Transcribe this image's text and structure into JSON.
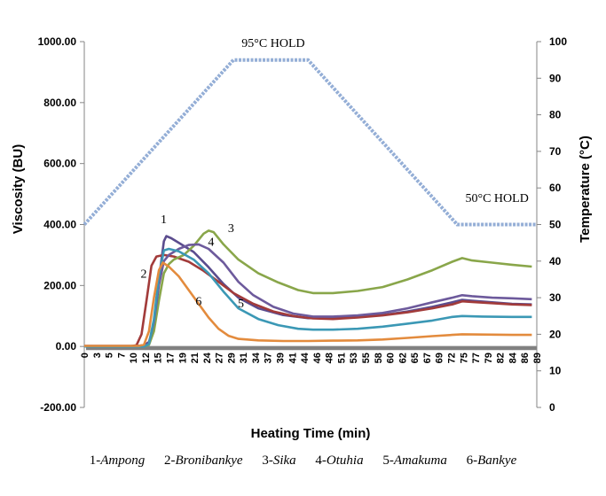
{
  "chart_data": {
    "type": "line",
    "xlabel": "Heating Time (min)",
    "ylabel": "Viscosity (BU)",
    "y2label": "Temperature (°C)",
    "ylim": [
      -200,
      1000
    ],
    "y_ticks": [
      "1000.00",
      "800.00",
      "600.00",
      "400.00",
      "200.00",
      "0.00",
      "-200.00"
    ],
    "y2lim": [
      0,
      100
    ],
    "y2_ticks": [
      "100",
      "90",
      "80",
      "70",
      "60",
      "50",
      "40",
      "30",
      "20",
      "10",
      "0"
    ],
    "xlim": [
      0,
      91
    ],
    "x_ticks": [
      "0",
      "3",
      "5",
      "7",
      "10",
      "12",
      "15",
      "17",
      "19",
      "21",
      "24",
      "27",
      "29",
      "31",
      "34",
      "37",
      "39",
      "41",
      "44",
      "46",
      "48",
      "51",
      "53",
      "55",
      "58",
      "60",
      "62",
      "65",
      "67",
      "69",
      "72",
      "75",
      "77",
      "79",
      "82",
      "84",
      "86",
      "89"
    ],
    "annotations": {
      "hold95": {
        "text": "95°C HOLD",
        "x": 38,
        "y2": 98.5
      },
      "hold50": {
        "text": "50°C HOLD",
        "x": 83,
        "y2": 56.2
      }
    },
    "temperature": {
      "color": "#94AED6",
      "axis": "right",
      "points": [
        [
          0,
          50
        ],
        [
          30,
          95
        ],
        [
          45,
          95
        ],
        [
          75,
          50
        ],
        [
          91,
          50
        ]
      ]
    },
    "baseline": {
      "color": "#808080",
      "value": -6
    },
    "series": [
      {
        "label": "1",
        "name": "Ampong",
        "color": "#5B4C8E",
        "points": [
          [
            0,
            2
          ],
          [
            10,
            2
          ],
          [
            12,
            3
          ],
          [
            13,
            15
          ],
          [
            14,
            70
          ],
          [
            15,
            220
          ],
          [
            16,
            345
          ],
          [
            16.5,
            362
          ],
          [
            17.5,
            355
          ],
          [
            19,
            340
          ],
          [
            22,
            310
          ],
          [
            25,
            260
          ],
          [
            28,
            205
          ],
          [
            31,
            160
          ],
          [
            35,
            125
          ],
          [
            40,
            103
          ],
          [
            45,
            93
          ],
          [
            50,
            93
          ],
          [
            55,
            96
          ],
          [
            60,
            103
          ],
          [
            65,
            115
          ],
          [
            70,
            130
          ],
          [
            74,
            145
          ],
          [
            76,
            153
          ],
          [
            78,
            150
          ],
          [
            82,
            145
          ],
          [
            86,
            140
          ],
          [
            90,
            138
          ]
        ]
      },
      {
        "label": "2",
        "name": "Bronibankye",
        "color": "#A23B3A",
        "points": [
          [
            0,
            1
          ],
          [
            9.5,
            1
          ],
          [
            10.5,
            4
          ],
          [
            11.5,
            40
          ],
          [
            12.5,
            150
          ],
          [
            13.5,
            265
          ],
          [
            14.5,
            295
          ],
          [
            16,
            300
          ],
          [
            18,
            295
          ],
          [
            21,
            278
          ],
          [
            24,
            248
          ],
          [
            27,
            212
          ],
          [
            30,
            175
          ],
          [
            34,
            140
          ],
          [
            38,
            115
          ],
          [
            42,
            100
          ],
          [
            46,
            92
          ],
          [
            50,
            90
          ],
          [
            55,
            95
          ],
          [
            60,
            102
          ],
          [
            65,
            112
          ],
          [
            70,
            125
          ],
          [
            74,
            138
          ],
          [
            76,
            148
          ],
          [
            78,
            146
          ],
          [
            82,
            142
          ],
          [
            86,
            138
          ],
          [
            90,
            136
          ]
        ]
      },
      {
        "label": "3",
        "name": "Sika",
        "color": "#89A64A",
        "points": [
          [
            0,
            0
          ],
          [
            12,
            0
          ],
          [
            13,
            5
          ],
          [
            14,
            50
          ],
          [
            15,
            150
          ],
          [
            16,
            240
          ],
          [
            17,
            270
          ],
          [
            18,
            285
          ],
          [
            20,
            300
          ],
          [
            22,
            330
          ],
          [
            24,
            370
          ],
          [
            25,
            380
          ],
          [
            26,
            375
          ],
          [
            28,
            335
          ],
          [
            31,
            285
          ],
          [
            35,
            240
          ],
          [
            39,
            210
          ],
          [
            43,
            185
          ],
          [
            46,
            175
          ],
          [
            50,
            175
          ],
          [
            55,
            182
          ],
          [
            60,
            195
          ],
          [
            65,
            220
          ],
          [
            70,
            250
          ],
          [
            74,
            278
          ],
          [
            76,
            290
          ],
          [
            78,
            282
          ],
          [
            82,
            275
          ],
          [
            86,
            268
          ],
          [
            90,
            262
          ]
        ]
      },
      {
        "label": "4",
        "name": "Otuhia",
        "color": "#6D5A9C",
        "points": [
          [
            0,
            0
          ],
          [
            12,
            0
          ],
          [
            13,
            10
          ],
          [
            14,
            80
          ],
          [
            15,
            200
          ],
          [
            16,
            280
          ],
          [
            17,
            300
          ],
          [
            19,
            320
          ],
          [
            21,
            333
          ],
          [
            23,
            335
          ],
          [
            25,
            320
          ],
          [
            28,
            275
          ],
          [
            31,
            212
          ],
          [
            34,
            168
          ],
          [
            38,
            130
          ],
          [
            42,
            108
          ],
          [
            46,
            98
          ],
          [
            50,
            98
          ],
          [
            55,
            102
          ],
          [
            60,
            110
          ],
          [
            65,
            125
          ],
          [
            70,
            145
          ],
          [
            74,
            160
          ],
          [
            76,
            168
          ],
          [
            78,
            165
          ],
          [
            82,
            160
          ],
          [
            86,
            158
          ],
          [
            90,
            155
          ]
        ]
      },
      {
        "label": "5",
        "name": "Amakuma",
        "color": "#3B98B5",
        "points": [
          [
            0,
            0
          ],
          [
            12,
            0
          ],
          [
            13,
            8
          ],
          [
            14,
            90
          ],
          [
            15,
            230
          ],
          [
            16,
            315
          ],
          [
            17,
            320
          ],
          [
            19,
            312
          ],
          [
            22,
            285
          ],
          [
            25,
            240
          ],
          [
            28,
            180
          ],
          [
            31,
            125
          ],
          [
            35,
            90
          ],
          [
            39,
            70
          ],
          [
            43,
            58
          ],
          [
            46,
            55
          ],
          [
            50,
            55
          ],
          [
            55,
            58
          ],
          [
            60,
            65
          ],
          [
            65,
            75
          ],
          [
            70,
            85
          ],
          [
            74,
            97
          ],
          [
            76,
            100
          ],
          [
            80,
            98
          ],
          [
            86,
            97
          ],
          [
            90,
            97
          ]
        ]
      },
      {
        "label": "6",
        "name": "Bankye",
        "color": "#E38B3D",
        "points": [
          [
            0,
            2
          ],
          [
            11,
            2
          ],
          [
            12,
            6
          ],
          [
            13,
            50
          ],
          [
            14,
            160
          ],
          [
            15,
            250
          ],
          [
            15.8,
            275
          ],
          [
            17,
            262
          ],
          [
            19,
            230
          ],
          [
            21,
            185
          ],
          [
            23,
            140
          ],
          [
            25,
            95
          ],
          [
            27,
            58
          ],
          [
            29,
            35
          ],
          [
            31,
            25
          ],
          [
            35,
            20
          ],
          [
            40,
            18
          ],
          [
            45,
            18
          ],
          [
            50,
            19
          ],
          [
            55,
            20
          ],
          [
            60,
            23
          ],
          [
            65,
            28
          ],
          [
            70,
            34
          ],
          [
            74,
            38
          ],
          [
            76,
            40
          ],
          [
            80,
            39
          ],
          [
            86,
            38
          ],
          [
            90,
            38
          ]
        ]
      }
    ],
    "legend": [
      {
        "num": "1-",
        "name": "Ampong"
      },
      {
        "num": "2-",
        "name": "Bronibankye"
      },
      {
        "num": "3-",
        "name": "Sika"
      },
      {
        "num": "4-",
        "name": "Otuhia"
      },
      {
        "num": "5-",
        "name": "Amakuma"
      },
      {
        "num": "6-",
        "name": "Bankye"
      }
    ],
    "legend_position": "bottom"
  }
}
